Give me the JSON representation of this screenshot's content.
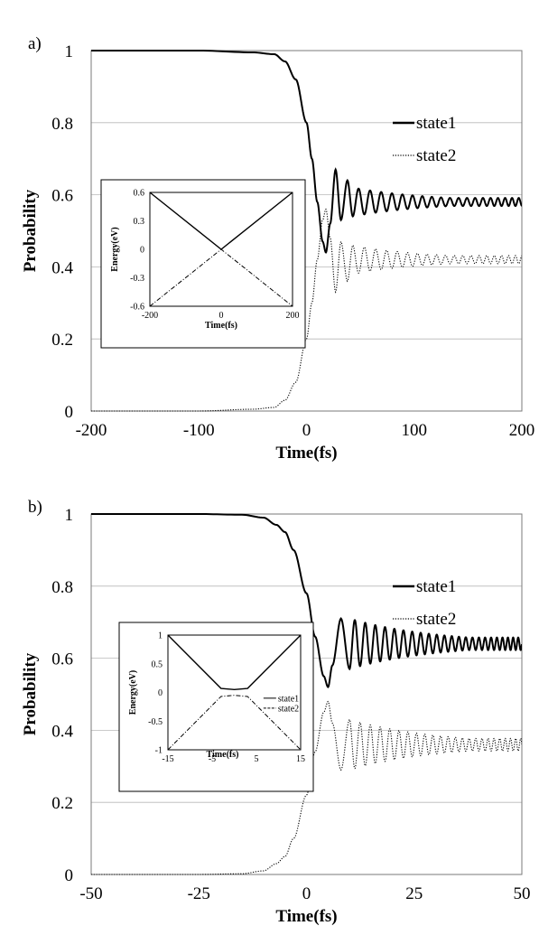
{
  "chart_data": [
    {
      "type": "line",
      "panel_label": "a)",
      "xlabel": "Time(fs)",
      "ylabel": "Probability",
      "xlim": [
        -200,
        200
      ],
      "ylim": [
        0,
        1
      ],
      "xticks": [
        "-200",
        "-100",
        "0",
        "100",
        "200"
      ],
      "yticks": [
        "0",
        "0.2",
        "0.4",
        "0.6",
        "0.8",
        "1"
      ],
      "grid": true,
      "legend_position": "top-right",
      "series": [
        {
          "name": "state1",
          "style": "solid",
          "description": "starts at 1, drops near t=0 to about 0.44 minimum at ~18 fs, then oscillates with damping around 0.58",
          "points": [
            [
              -200,
              1.0
            ],
            [
              -100,
              1.0
            ],
            [
              -50,
              0.995
            ],
            [
              -30,
              0.99
            ],
            [
              -20,
              0.97
            ],
            [
              -10,
              0.92
            ],
            [
              0,
              0.8
            ],
            [
              5,
              0.7
            ],
            [
              10,
              0.58
            ],
            [
              15,
              0.47
            ],
            [
              18,
              0.44
            ],
            [
              22,
              0.52
            ],
            [
              27,
              0.67
            ],
            [
              32,
              0.53
            ],
            [
              38,
              0.64
            ],
            [
              43,
              0.54
            ],
            [
              60,
              0.6
            ],
            [
              100,
              0.585
            ],
            [
              150,
              0.58
            ],
            [
              200,
              0.58
            ]
          ]
        },
        {
          "name": "state2",
          "style": "dotted",
          "description": "mirror of state1: starts at 0, rises near t=0 to about 0.56 maximum, then oscillates with damping around 0.42",
          "points": [
            [
              -200,
              0.0
            ],
            [
              -100,
              0.0
            ],
            [
              -50,
              0.005
            ],
            [
              -30,
              0.01
            ],
            [
              -20,
              0.03
            ],
            [
              -10,
              0.08
            ],
            [
              0,
              0.2
            ],
            [
              5,
              0.3
            ],
            [
              10,
              0.42
            ],
            [
              15,
              0.53
            ],
            [
              18,
              0.56
            ],
            [
              22,
              0.48
            ],
            [
              27,
              0.33
            ],
            [
              32,
              0.47
            ],
            [
              38,
              0.36
            ],
            [
              43,
              0.46
            ],
            [
              60,
              0.4
            ],
            [
              100,
              0.415
            ],
            [
              150,
              0.42
            ],
            [
              200,
              0.42
            ]
          ]
        }
      ],
      "inset": {
        "type": "line",
        "xlabel": "Time(fs)",
        "ylabel": "Energy(eV)",
        "xlim": [
          -200,
          200
        ],
        "ylim": [
          -0.6,
          0.6
        ],
        "xticks": [
          "-200",
          "0",
          "200"
        ],
        "yticks": [
          "0.6",
          "0.3",
          "0",
          "-0.3",
          "-0.6"
        ],
        "series": [
          {
            "name": "state1",
            "style": "solid",
            "points": [
              [
                -200,
                0.6
              ],
              [
                0,
                0.0
              ],
              [
                200,
                0.6
              ]
            ]
          },
          {
            "name": "state2",
            "style": "dash-dot",
            "points": [
              [
                -200,
                -0.6
              ],
              [
                0,
                0.0
              ],
              [
                200,
                -0.6
              ]
            ]
          }
        ]
      }
    },
    {
      "type": "line",
      "panel_label": "b)",
      "xlabel": "Time(fs)",
      "ylabel": "Probability",
      "xlim": [
        -50,
        50
      ],
      "ylim": [
        0,
        1
      ],
      "xticks": [
        "-50",
        "-25",
        "0",
        "25",
        "50"
      ],
      "yticks": [
        "0",
        "0.2",
        "0.4",
        "0.6",
        "0.8",
        "1"
      ],
      "grid": true,
      "legend_position": "top-right",
      "series": [
        {
          "name": "state1",
          "style": "solid",
          "description": "starts at 1, drops near t=0 to about 0.52 minimum at ~5 fs, then oscillates with damping around 0.64",
          "points": [
            [
              -50,
              1.0
            ],
            [
              -25,
              1.0
            ],
            [
              -15,
              0.998
            ],
            [
              -10,
              0.99
            ],
            [
              -7,
              0.97
            ],
            [
              -5,
              0.95
            ],
            [
              -3,
              0.9
            ],
            [
              0,
              0.78
            ],
            [
              2,
              0.66
            ],
            [
              4,
              0.55
            ],
            [
              5,
              0.52
            ],
            [
              6,
              0.58
            ],
            [
              8,
              0.71
            ],
            [
              10,
              0.57
            ],
            [
              12,
              0.69
            ],
            [
              14,
              0.59
            ],
            [
              20,
              0.65
            ],
            [
              30,
              0.64
            ],
            [
              50,
              0.64
            ]
          ]
        },
        {
          "name": "state2",
          "style": "dotted",
          "description": "mirror of state1: starts at 0, rises near t=0 to about 0.48 maximum at ~5 fs, then oscillates with damping around 0.36",
          "points": [
            [
              -50,
              0.0
            ],
            [
              -25,
              0.0
            ],
            [
              -15,
              0.002
            ],
            [
              -10,
              0.01
            ],
            [
              -7,
              0.03
            ],
            [
              -5,
              0.05
            ],
            [
              -3,
              0.1
            ],
            [
              0,
              0.22
            ],
            [
              2,
              0.34
            ],
            [
              4,
              0.45
            ],
            [
              5,
              0.48
            ],
            [
              6,
              0.42
            ],
            [
              8,
              0.29
            ],
            [
              10,
              0.43
            ],
            [
              12,
              0.31
            ],
            [
              14,
              0.41
            ],
            [
              20,
              0.35
            ],
            [
              30,
              0.36
            ],
            [
              50,
              0.36
            ]
          ]
        }
      ],
      "inset": {
        "type": "line",
        "xlabel": "Time(fs)",
        "ylabel": "Energy(eV)",
        "xlim": [
          -15,
          15
        ],
        "ylim": [
          -1,
          1
        ],
        "xticks": [
          "-15",
          "-5",
          "5",
          "15"
        ],
        "yticks": [
          "1",
          "0.5",
          "0",
          "-0.5",
          "-1"
        ],
        "legend": [
          "state1",
          "state2"
        ],
        "series": [
          {
            "name": "state1",
            "style": "solid",
            "points": [
              [
                -15,
                1.0
              ],
              [
                -3,
                0.07
              ],
              [
                0,
                0.05
              ],
              [
                3,
                0.07
              ],
              [
                15,
                1.0
              ]
            ]
          },
          {
            "name": "state2",
            "style": "dash-dot",
            "points": [
              [
                -15,
                -1.0
              ],
              [
                -3,
                -0.07
              ],
              [
                0,
                -0.05
              ],
              [
                3,
                -0.07
              ],
              [
                15,
                -1.0
              ]
            ]
          }
        ]
      }
    }
  ]
}
